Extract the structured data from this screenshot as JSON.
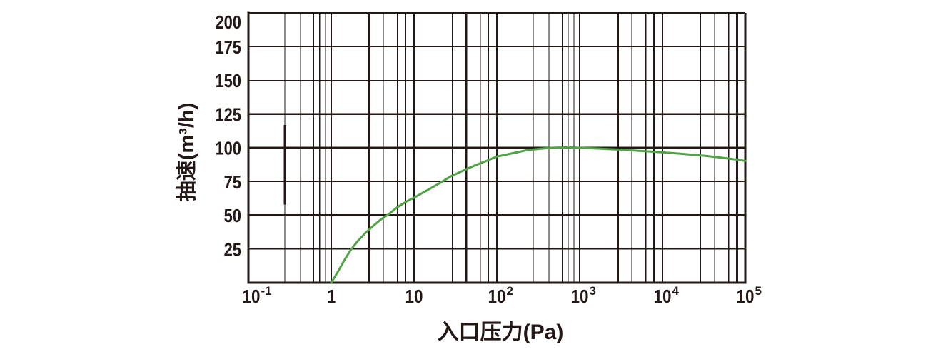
{
  "figure": {
    "background": "#ffffff",
    "ink_color": "#231815",
    "curve_color": "#50a345"
  },
  "chart_data": {
    "type": "line",
    "title": "",
    "xlabel": "入口压力(Pa)",
    "ylabel": "抽速(m³/h)",
    "x_scale": "log10",
    "x_range_pa": [
      0.1,
      100000
    ],
    "y_range": [
      0,
      200
    ],
    "y_tick_step": 25,
    "y_ticks": [
      200,
      175,
      150,
      125,
      100,
      75,
      50,
      25
    ],
    "y_bold_gridlines": [
      125,
      100,
      50
    ],
    "x_major_values": [
      0.1,
      1,
      10,
      100,
      1000,
      10000,
      100000
    ],
    "x_tick_labels": [
      {
        "base": "10",
        "sup": "-1"
      },
      {
        "base": "1",
        "sup": ""
      },
      {
        "base": "10",
        "sup": ""
      },
      {
        "base": "10",
        "sup": "2"
      },
      {
        "base": "10",
        "sup": "3"
      },
      {
        "base": "10",
        "sup": "4"
      },
      {
        "base": "10",
        "sup": "5"
      }
    ],
    "grid": {
      "on": true,
      "x_minor_offsets": [
        0.46,
        0.63,
        0.8,
        0.9
      ],
      "x_minor_offsets_dense": [
        0.44,
        0.63,
        0.79,
        0.86,
        0.93
      ],
      "x_dense_decades": [
        0,
        3
      ],
      "x_bold_minors": [
        [
          1,
          0.46
        ],
        [
          2,
          0.63
        ],
        [
          4,
          0.46
        ],
        [
          4,
          0.9
        ],
        [
          5,
          0.9
        ]
      ]
    },
    "artifact_mark": {
      "x_pa": 0.275,
      "y_from": 58,
      "y_to": 117
    },
    "legend": "none",
    "series": [
      {
        "name": "pumping-speed",
        "color": "#50a345",
        "points": [
          [
            1,
            0
          ],
          [
            1.2,
            8
          ],
          [
            1.45,
            17
          ],
          [
            1.75,
            25
          ],
          [
            2.1,
            31
          ],
          [
            2.6,
            37
          ],
          [
            3.2,
            42
          ],
          [
            4,
            47
          ],
          [
            5,
            51
          ],
          [
            6.3,
            56
          ],
          [
            8,
            60
          ],
          [
            10,
            63
          ],
          [
            13,
            67
          ],
          [
            17,
            71
          ],
          [
            22,
            75
          ],
          [
            28,
            79
          ],
          [
            36,
            82
          ],
          [
            46,
            85
          ],
          [
            60,
            88
          ],
          [
            80,
            91
          ],
          [
            100,
            93.5
          ],
          [
            130,
            95
          ],
          [
            170,
            96.5
          ],
          [
            220,
            98
          ],
          [
            300,
            99
          ],
          [
            400,
            99.8
          ],
          [
            550,
            100.2
          ],
          [
            750,
            100.3
          ],
          [
            1000,
            100
          ],
          [
            1400,
            99.7
          ],
          [
            2000,
            99.2
          ],
          [
            3000,
            98.7
          ],
          [
            4500,
            98
          ],
          [
            7000,
            97.3
          ],
          [
            10000,
            96.6
          ],
          [
            15000,
            95.8
          ],
          [
            22000,
            95
          ],
          [
            33000,
            94
          ],
          [
            50000,
            92.8
          ],
          [
            70000,
            91.7
          ],
          [
            100000,
            90.3
          ]
        ]
      }
    ]
  }
}
